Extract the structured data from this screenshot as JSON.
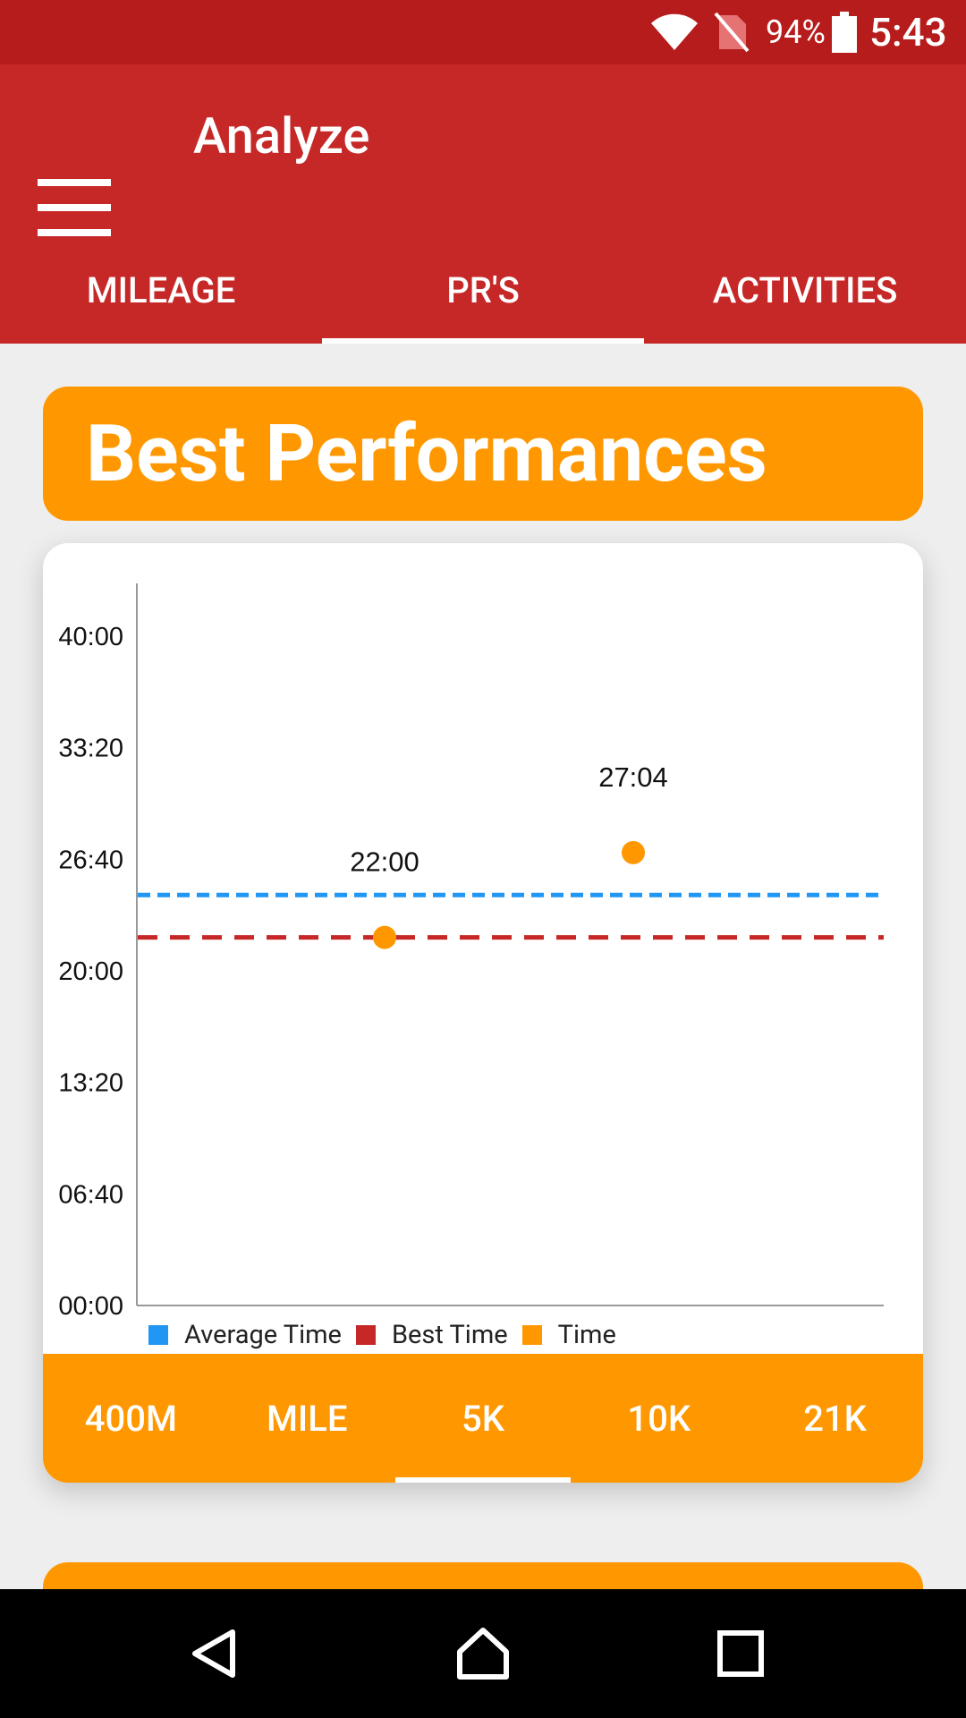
{
  "status_bar": {
    "battery": "94%",
    "time": "5:43"
  },
  "app_bar": {
    "title": "Analyze"
  },
  "tabs": [
    {
      "label": "MILEAGE",
      "active": false
    },
    {
      "label": "PR'S",
      "active": true
    },
    {
      "label": "ACTIVITIES",
      "active": false
    }
  ],
  "header": {
    "title": "Best Performances"
  },
  "colors": {
    "average": "#2196f3",
    "best": "#c62828",
    "time": "#ff9800"
  },
  "chart_data": {
    "type": "scatter",
    "y_ticks": [
      "00:00",
      "06:40",
      "13:20",
      "20:00",
      "26:40",
      "33:20",
      "40:00"
    ],
    "y_range_seconds": [
      0,
      2400
    ],
    "series": [
      {
        "name": "Time",
        "points": [
          {
            "x": 1,
            "y": "22:00"
          },
          {
            "x": 2,
            "y": "27:04"
          }
        ]
      },
      {
        "name": "Average Time",
        "value": "24:32"
      },
      {
        "name": "Best Time",
        "value": "22:00"
      }
    ],
    "data_labels": [
      "22:00",
      "27:04"
    ],
    "legend": [
      "Average Time",
      "Best Time",
      "Time"
    ],
    "legend_position": "bottom-left"
  },
  "distance_tabs": [
    {
      "label": "400M",
      "active": false
    },
    {
      "label": "MILE",
      "active": false
    },
    {
      "label": "5K",
      "active": true
    },
    {
      "label": "10K",
      "active": false
    },
    {
      "label": "21K",
      "active": false
    }
  ]
}
